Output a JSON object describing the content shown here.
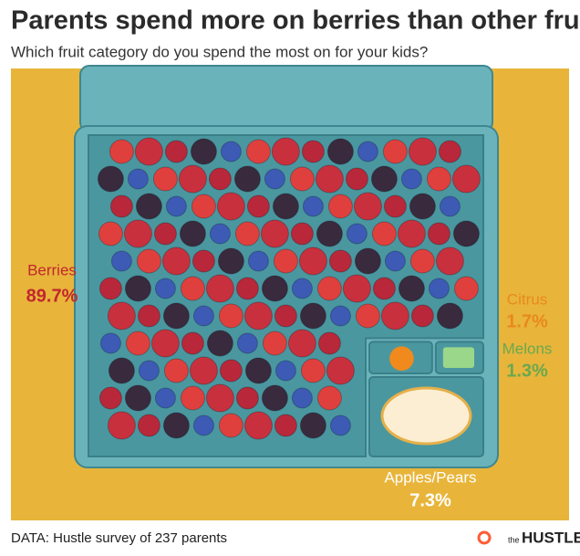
{
  "chart_data": {
    "type": "treemap",
    "title": "Parents spend more on berries than other fruits",
    "subtitle": "Which fruit category do you spend the most on for your kids?",
    "categories": [
      "Berries",
      "Citrus",
      "Melons",
      "Apples/Pears"
    ],
    "values": [
      89.7,
      1.7,
      1.3,
      7.3
    ],
    "value_labels": [
      "89.7%",
      "1.7%",
      "1.3%",
      "7.3%"
    ],
    "colors": [
      "#4a97a0",
      "#4a97a0",
      "#4a97a0",
      "#4a97a0"
    ],
    "label_colors": [
      "#c0272d",
      "#e8891c",
      "#6aa84f",
      "#ffffff"
    ]
  },
  "footer": {
    "source": "DATA: Hustle survey of 237 parents",
    "logo_small": "the",
    "logo": "HUSTLE"
  }
}
